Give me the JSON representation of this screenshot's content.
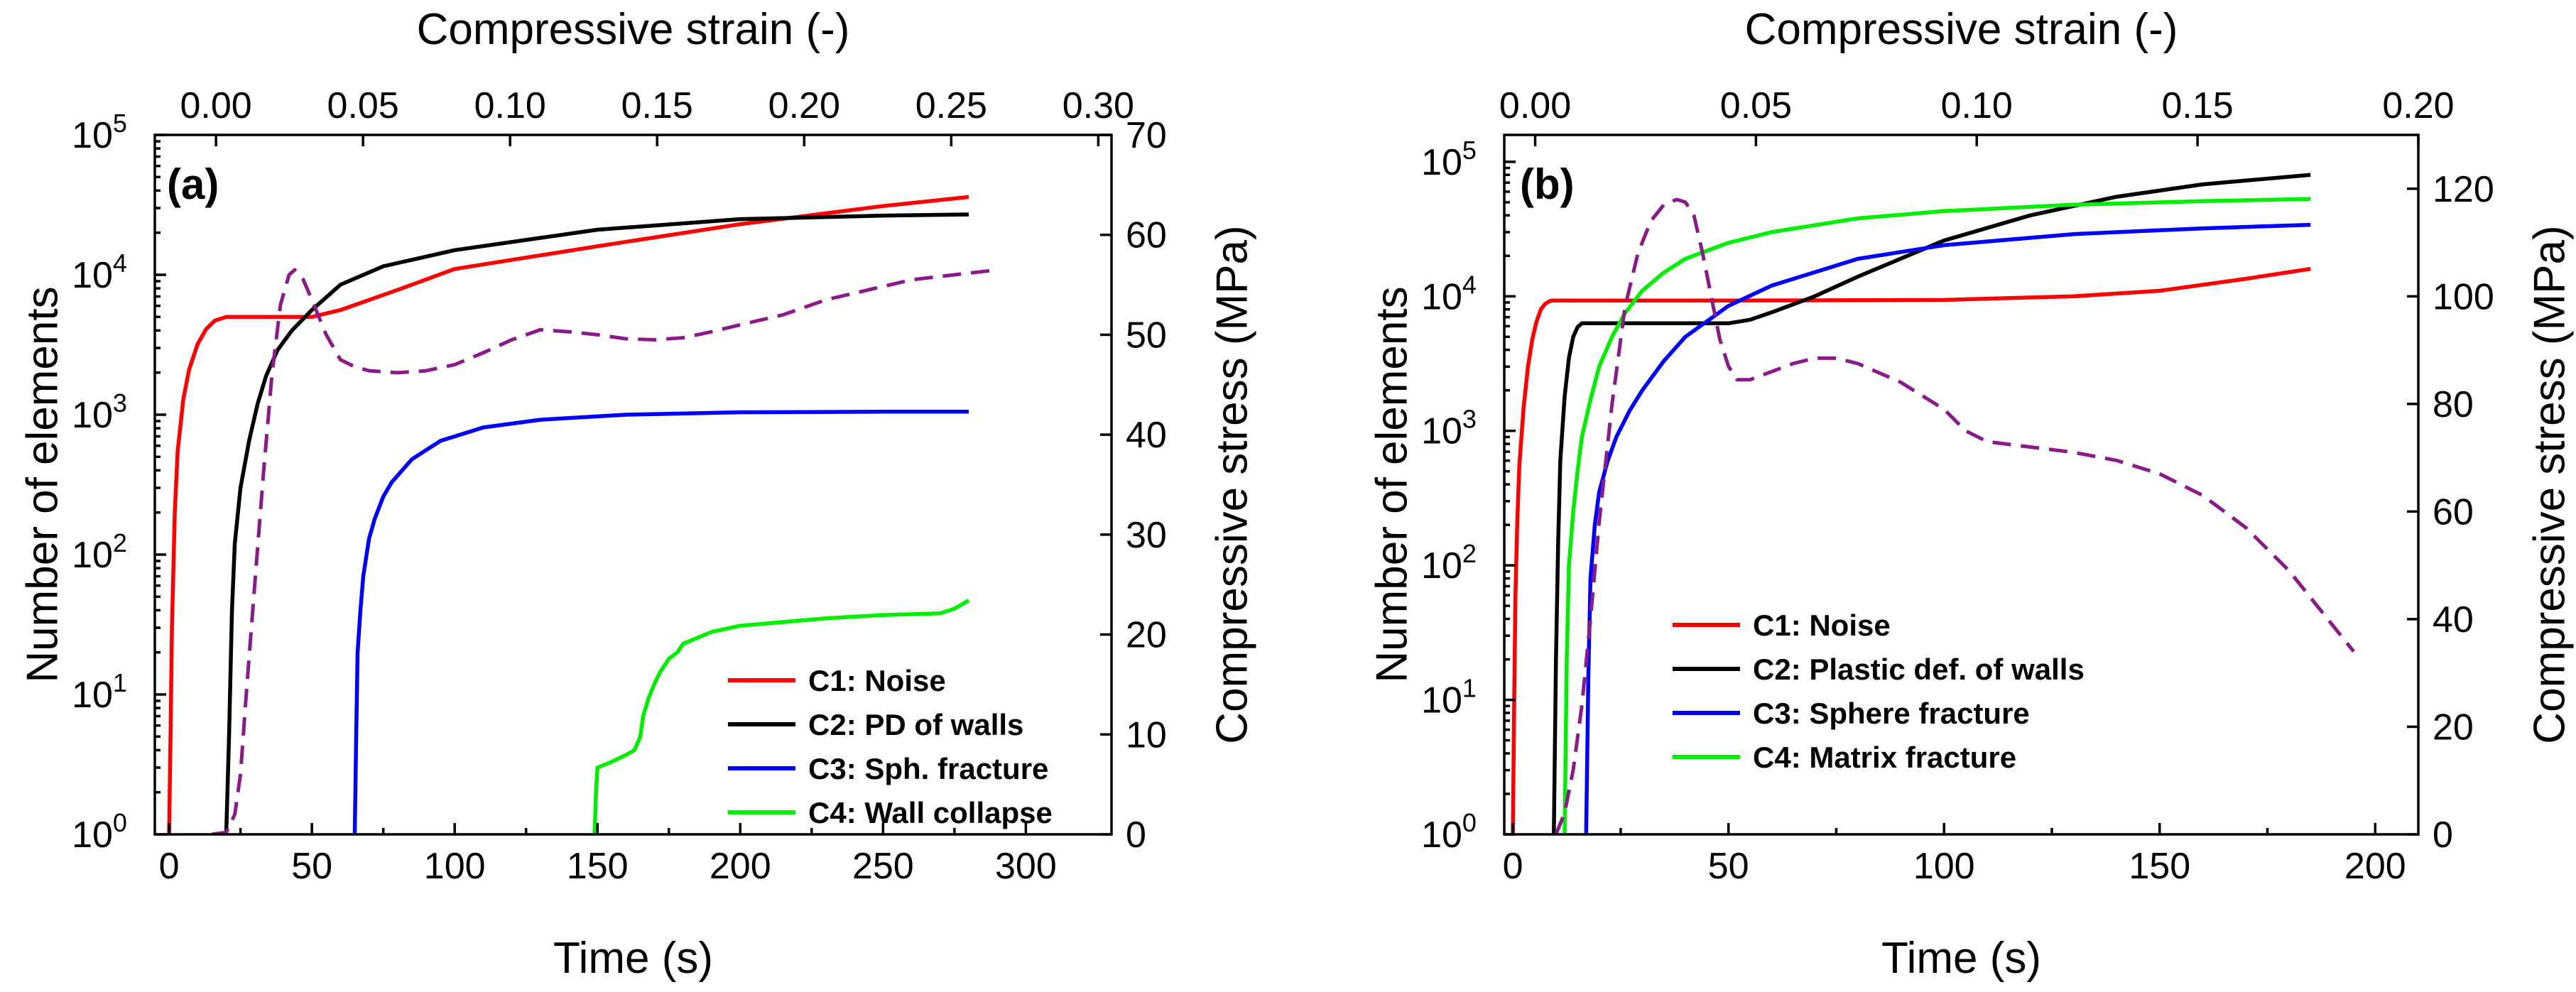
{
  "chart_data": [
    {
      "panel": "(a)",
      "type": "line",
      "xlabel": "Time (s)",
      "ylabel": "Number of elements",
      "x2label": "Compressive strain (-)",
      "y2label": "Compressive stress (MPa)",
      "xlim": [
        -5,
        330
      ],
      "xticks": [
        0,
        50,
        100,
        150,
        200,
        250,
        300
      ],
      "ylim_log10": [
        0,
        5
      ],
      "yticks": [
        "10^0",
        "10^1",
        "10^2",
        "10^3",
        "10^4",
        "10^5"
      ],
      "x2ticks": [
        "0.00",
        "0.05",
        "0.10",
        "0.15",
        "0.20",
        "0.25",
        "0.30"
      ],
      "x2values": [
        0.0,
        0.05,
        0.1,
        0.15,
        0.2,
        0.25,
        0.3
      ],
      "x2lim": [
        -0.0208,
        0.3045
      ],
      "y2lim": [
        0,
        70
      ],
      "y2ticks": [
        "0",
        "10",
        "20",
        "30",
        "40",
        "50",
        "60",
        "70"
      ],
      "y2values": [
        0,
        10,
        20,
        30,
        40,
        50,
        60,
        70
      ],
      "legend": {
        "position": "bottom-right",
        "entries": [
          "C1: Noise",
          "C2: PD of walls",
          "C3: Sph. fracture",
          "C4: Wall collapse"
        ]
      },
      "series": [
        {
          "name": "C1: Noise",
          "color": "#ff0000",
          "axis": "count",
          "x": [
            0,
            0.5,
            1,
            2,
            3,
            5,
            7,
            10,
            13,
            16,
            20,
            22,
            30,
            50,
            60,
            80,
            100,
            150,
            200,
            250,
            280
          ],
          "y": [
            1,
            5,
            30,
            200,
            550,
            1300,
            2100,
            3200,
            4100,
            4700,
            5000,
            5000,
            5000,
            5000,
            5600,
            7800,
            11000,
            16000,
            23000,
            31000,
            36000
          ]
        },
        {
          "name": "C2: PD of walls",
          "color": "#000000",
          "axis": "count",
          "x": [
            20,
            21,
            22,
            23,
            25,
            28,
            31,
            34,
            38,
            43,
            50,
            60,
            75,
            100,
            150,
            200,
            250,
            280
          ],
          "y": [
            1,
            5,
            40,
            120,
            300,
            650,
            1200,
            1900,
            2900,
            4000,
            5600,
            8500,
            11500,
            15000,
            21000,
            25000,
            26500,
            27000
          ]
        },
        {
          "name": "C3: Sph. fracture",
          "color": "#0000ff",
          "axis": "count",
          "x": [
            65,
            65.5,
            66,
            67,
            68,
            70,
            72,
            75,
            78,
            85,
            95,
            110,
            130,
            160,
            200,
            250,
            280
          ],
          "y": [
            1,
            5,
            20,
            40,
            70,
            130,
            180,
            260,
            330,
            480,
            650,
            810,
            920,
            1000,
            1040,
            1050,
            1050
          ]
        },
        {
          "name": "C4: Wall collapse",
          "color": "#00ee00",
          "axis": "count",
          "x": [
            149,
            149.5,
            150,
            155,
            160,
            163,
            165,
            166,
            168,
            170,
            172,
            175,
            178,
            180,
            190,
            200,
            230,
            250,
            270,
            275,
            280
          ],
          "y": [
            1,
            2,
            3,
            3.3,
            3.7,
            4,
            5,
            7,
            9.5,
            12,
            14.5,
            18,
            20,
            23,
            28,
            31,
            35,
            37,
            38,
            41,
            47
          ]
        },
        {
          "name": "Compressive stress",
          "color": "#8b1a89",
          "axis": "stress",
          "dash": true,
          "x": [
            15,
            20,
            23,
            25,
            27,
            30,
            33,
            36,
            39,
            42,
            44,
            47,
            50,
            55,
            60,
            65,
            70,
            80,
            90,
            100,
            110,
            120,
            130,
            140,
            150,
            160,
            170,
            180,
            190,
            200,
            215,
            230,
            245,
            260,
            275,
            290
          ],
          "y": [
            0,
            0.2,
            2,
            6,
            14,
            25,
            36,
            46,
            53,
            56,
            56.5,
            55.5,
            53.5,
            50,
            47.5,
            46.8,
            46.4,
            46.2,
            46.4,
            47,
            48.2,
            49.5,
            50.5,
            50.3,
            50,
            49.6,
            49.5,
            49.7,
            50.3,
            51,
            52,
            53.5,
            54.5,
            55.5,
            56,
            56.5
          ]
        }
      ]
    },
    {
      "panel": "(b)",
      "type": "line",
      "xlabel": "Time (s)",
      "ylabel": "Number of elements",
      "x2label": "Compressive strain (-)",
      "y2label": "Compressive stress (MPa)",
      "xlim": [
        -2,
        210
      ],
      "xticks": [
        0,
        50,
        100,
        150,
        200
      ],
      "ylim_log10": [
        0,
        5.2
      ],
      "yticks": [
        "10^0",
        "10^1",
        "10^2",
        "10^3",
        "10^4",
        "10^5"
      ],
      "x2ticks": [
        "0.00",
        "0.05",
        "0.10",
        "0.15",
        "0.20"
      ],
      "x2values": [
        0.0,
        0.05,
        0.1,
        0.15,
        0.2
      ],
      "x2lim": [
        -0.007,
        0.2
      ],
      "y2lim": [
        0,
        130
      ],
      "y2ticks": [
        "0",
        "20",
        "40",
        "60",
        "80",
        "100",
        "120"
      ],
      "y2values": [
        0,
        20,
        40,
        60,
        80,
        100,
        120
      ],
      "legend": {
        "position": "bottom-center",
        "entries": [
          "C1: Noise",
          "C2: Plastic def. of walls",
          "C3: Sphere fracture",
          "C4: Matrix fracture"
        ]
      },
      "series": [
        {
          "name": "C1: Noise",
          "color": "#ff0000",
          "axis": "count",
          "x": [
            0,
            0.3,
            0.6,
            1,
            1.5,
            2.5,
            3.5,
            4.5,
            5.5,
            6.5,
            7.5,
            8.5,
            9,
            10,
            50,
            100,
            130,
            150,
            170,
            185
          ],
          "y": [
            1,
            10,
            60,
            200,
            550,
            1500,
            3000,
            4800,
            6500,
            8000,
            8800,
            9200,
            9300,
            9300,
            9300,
            9400,
            10000,
            11000,
            13500,
            16000
          ]
        },
        {
          "name": "C2: Plastic def. of walls",
          "color": "#000000",
          "axis": "count",
          "x": [
            9.5,
            10,
            10.5,
            11,
            12,
            13,
            14,
            15,
            16,
            50,
            55,
            60,
            70,
            80,
            100,
            120,
            140,
            160,
            185
          ],
          "y": [
            1,
            20,
            150,
            600,
            1800,
            3500,
            5000,
            5900,
            6300,
            6300,
            6700,
            7600,
            10000,
            14000,
            26000,
            40000,
            55000,
            68000,
            80000
          ]
        },
        {
          "name": "C3: Sphere fracture",
          "color": "#0000ff",
          "axis": "count",
          "x": [
            17,
            17.5,
            18,
            19,
            20,
            22,
            24,
            27,
            30,
            35,
            40,
            50,
            60,
            80,
            100,
            130,
            160,
            185
          ],
          "y": [
            1,
            15,
            80,
            200,
            350,
            600,
            900,
            1400,
            2000,
            3300,
            5000,
            8500,
            12000,
            19000,
            24000,
            29000,
            32000,
            34000
          ]
        },
        {
          "name": "C4: Matrix fracture",
          "color": "#00ee00",
          "axis": "count",
          "x": [
            12,
            12.5,
            13,
            14,
            15,
            16,
            18,
            20,
            23,
            26,
            30,
            35,
            40,
            50,
            60,
            80,
            100,
            130,
            160,
            185
          ],
          "y": [
            1,
            20,
            100,
            250,
            500,
            900,
            1700,
            3000,
            5000,
            7500,
            11000,
            15000,
            19000,
            25000,
            30000,
            38000,
            43000,
            48000,
            51000,
            53000
          ]
        },
        {
          "name": "Compressive stress",
          "color": "#8b1a89",
          "axis": "stress",
          "dash": true,
          "x": [
            10,
            12,
            14,
            16,
            18,
            20,
            23,
            26,
            29,
            32,
            35,
            38,
            40,
            42,
            44,
            46,
            48,
            50,
            52,
            55,
            60,
            65,
            70,
            75,
            80,
            90,
            100,
            105,
            110,
            120,
            130,
            140,
            150,
            160,
            170,
            180,
            195
          ],
          "y": [
            0,
            4,
            12,
            24,
            40,
            58,
            80,
            98,
            108,
            114,
            117,
            118,
            117.5,
            115,
            108,
            100,
            92,
            87,
            84.5,
            84.5,
            86,
            87.5,
            88.5,
            88.5,
            87.5,
            84,
            79,
            75,
            73,
            72,
            71,
            69.5,
            67,
            63,
            57,
            49,
            34
          ]
        }
      ]
    }
  ]
}
